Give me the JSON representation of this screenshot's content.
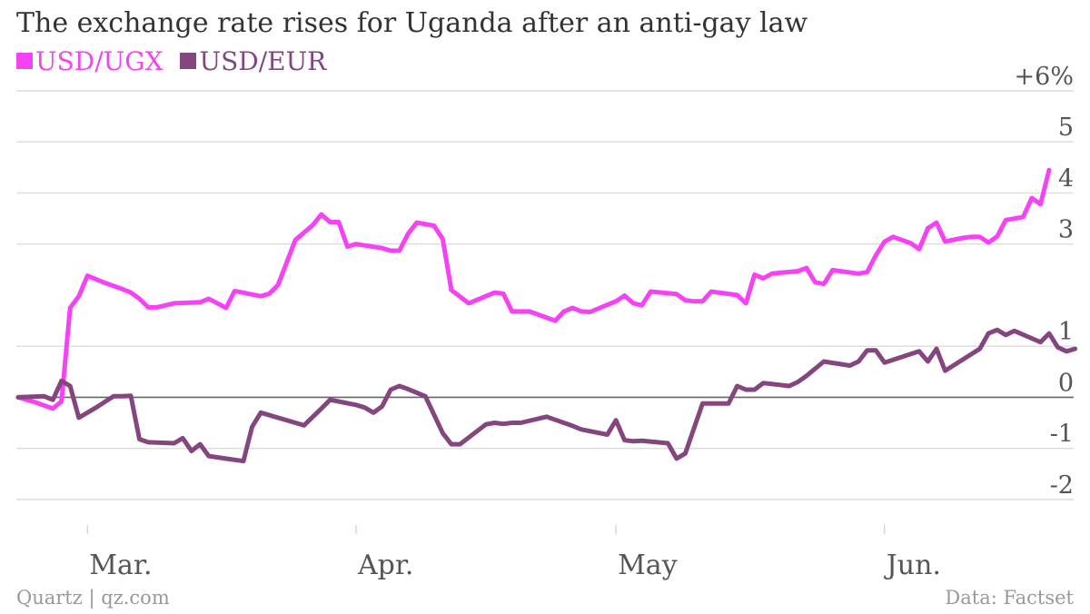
{
  "title": "The exchange rate rises for Uganda after an anti-gay law",
  "footer": {
    "source_left": "Quartz | qz.com",
    "source_right": "Data: Factset"
  },
  "colors": {
    "USD/UGX": "#f442f4",
    "USD/EUR": "#84467e",
    "grid": "#dddddd",
    "zero_line": "#666666"
  },
  "chart_data": {
    "type": "line",
    "title": "The exchange rate rises for Uganda after an anti-gay law",
    "xlabel": "",
    "ylabel": "",
    "ylim": [
      -2.5,
      6
    ],
    "grid": true,
    "legend_placement": "top-left",
    "y_ticks": [
      {
        "value": 6,
        "label": "+6%"
      },
      {
        "value": 5,
        "label": "5"
      },
      {
        "value": 4,
        "label": "4"
      },
      {
        "value": 3,
        "label": "3"
      },
      {
        "value": 1,
        "label": "1"
      },
      {
        "value": 0,
        "label": "0"
      },
      {
        "value": -1,
        "label": "-1"
      },
      {
        "value": -2,
        "label": "-2"
      }
    ],
    "x_ticks": [
      {
        "date": "2014-03-01",
        "label": "Mar."
      },
      {
        "date": "2014-04-01",
        "label": "Apr."
      },
      {
        "date": "2014-05-01",
        "label": "May"
      },
      {
        "date": "2014-06-01",
        "label": "Jun."
      }
    ],
    "x_range": [
      "2014-02-21",
      "2014-06-20"
    ],
    "series": [
      {
        "name": "USD/UGX",
        "points": [
          [
            "2014-02-21",
            0.0
          ],
          [
            "2014-02-23",
            -0.1
          ],
          [
            "2014-02-25",
            -0.22
          ],
          [
            "2014-02-26",
            -0.08
          ],
          [
            "2014-02-27",
            1.75
          ],
          [
            "2014-02-28",
            1.98
          ],
          [
            "2014-03-01",
            2.38
          ],
          [
            "2014-03-03",
            2.24
          ],
          [
            "2014-03-05",
            2.12
          ],
          [
            "2014-03-06",
            2.05
          ],
          [
            "2014-03-07",
            1.93
          ],
          [
            "2014-03-08",
            1.76
          ],
          [
            "2014-03-09",
            1.76
          ],
          [
            "2014-03-11",
            1.84
          ],
          [
            "2014-03-14",
            1.86
          ],
          [
            "2014-03-15",
            1.93
          ],
          [
            "2014-03-17",
            1.75
          ],
          [
            "2014-03-18",
            2.08
          ],
          [
            "2014-03-21",
            1.98
          ],
          [
            "2014-03-22",
            2.03
          ],
          [
            "2014-03-23",
            2.2
          ],
          [
            "2014-03-25",
            3.08
          ],
          [
            "2014-03-27",
            3.37
          ],
          [
            "2014-03-28",
            3.58
          ],
          [
            "2014-03-29",
            3.43
          ],
          [
            "2014-03-30",
            3.43
          ],
          [
            "2014-03-31",
            2.95
          ],
          [
            "2014-04-01",
            3.0
          ],
          [
            "2014-04-04",
            2.92
          ],
          [
            "2014-04-05",
            2.87
          ],
          [
            "2014-04-06",
            2.87
          ],
          [
            "2014-04-07",
            3.2
          ],
          [
            "2014-04-08",
            3.42
          ],
          [
            "2014-04-10",
            3.36
          ],
          [
            "2014-04-11",
            3.1
          ],
          [
            "2014-04-12",
            2.1
          ],
          [
            "2014-04-14",
            1.84
          ],
          [
            "2014-04-17",
            2.05
          ],
          [
            "2014-04-18",
            2.03
          ],
          [
            "2014-04-19",
            1.68
          ],
          [
            "2014-04-21",
            1.68
          ],
          [
            "2014-04-24",
            1.5
          ],
          [
            "2014-04-25",
            1.68
          ],
          [
            "2014-04-26",
            1.75
          ],
          [
            "2014-04-27",
            1.68
          ],
          [
            "2014-04-28",
            1.67
          ],
          [
            "2014-05-01",
            1.88
          ],
          [
            "2014-05-02",
            1.99
          ],
          [
            "2014-05-03",
            1.84
          ],
          [
            "2014-05-04",
            1.8
          ],
          [
            "2014-05-05",
            2.07
          ],
          [
            "2014-05-08",
            2.02
          ],
          [
            "2014-05-09",
            1.9
          ],
          [
            "2014-05-10",
            1.88
          ],
          [
            "2014-05-11",
            1.88
          ],
          [
            "2014-05-12",
            2.07
          ],
          [
            "2014-05-15",
            2.0
          ],
          [
            "2014-05-16",
            1.84
          ],
          [
            "2014-05-17",
            2.4
          ],
          [
            "2014-05-18",
            2.33
          ],
          [
            "2014-05-19",
            2.42
          ],
          [
            "2014-05-22",
            2.47
          ],
          [
            "2014-05-23",
            2.53
          ],
          [
            "2014-05-24",
            2.25
          ],
          [
            "2014-05-25",
            2.22
          ],
          [
            "2014-05-26",
            2.49
          ],
          [
            "2014-05-29",
            2.42
          ],
          [
            "2014-05-30",
            2.45
          ],
          [
            "2014-05-31",
            2.78
          ],
          [
            "2014-06-01",
            3.05
          ],
          [
            "2014-06-02",
            3.14
          ],
          [
            "2014-06-04",
            3.02
          ],
          [
            "2014-06-05",
            2.9
          ],
          [
            "2014-06-06",
            3.31
          ],
          [
            "2014-06-07",
            3.42
          ],
          [
            "2014-06-08",
            3.05
          ],
          [
            "2014-06-10",
            3.12
          ],
          [
            "2014-06-11",
            3.14
          ],
          [
            "2014-06-12",
            3.14
          ],
          [
            "2014-06-13",
            3.03
          ],
          [
            "2014-06-14",
            3.15
          ],
          [
            "2014-06-15",
            3.47
          ],
          [
            "2014-06-17",
            3.53
          ],
          [
            "2014-06-18",
            3.9
          ],
          [
            "2014-06-19",
            3.78
          ],
          [
            "2014-06-20",
            4.45
          ]
        ]
      },
      {
        "name": "USD/EUR",
        "points": [
          [
            "2014-02-21",
            0.0
          ],
          [
            "2014-02-24",
            0.02
          ],
          [
            "2014-02-25",
            -0.05
          ],
          [
            "2014-02-26",
            0.32
          ],
          [
            "2014-02-27",
            0.22
          ],
          [
            "2014-02-28",
            -0.4
          ],
          [
            "2014-03-02",
            -0.2
          ],
          [
            "2014-03-04",
            0.02
          ],
          [
            "2014-03-05",
            0.02
          ],
          [
            "2014-03-06",
            0.03
          ],
          [
            "2014-03-07",
            -0.82
          ],
          [
            "2014-03-08",
            -0.88
          ],
          [
            "2014-03-11",
            -0.9
          ],
          [
            "2014-03-12",
            -0.8
          ],
          [
            "2014-03-13",
            -1.05
          ],
          [
            "2014-03-14",
            -0.92
          ],
          [
            "2014-03-15",
            -1.15
          ],
          [
            "2014-03-19",
            -1.25
          ],
          [
            "2014-03-20",
            -0.58
          ],
          [
            "2014-03-21",
            -0.3
          ],
          [
            "2014-03-25",
            -0.5
          ],
          [
            "2014-03-26",
            -0.55
          ],
          [
            "2014-03-28",
            -0.22
          ],
          [
            "2014-03-29",
            -0.05
          ],
          [
            "2014-04-01",
            -0.15
          ],
          [
            "2014-04-02",
            -0.2
          ],
          [
            "2014-04-03",
            -0.3
          ],
          [
            "2014-04-04",
            -0.18
          ],
          [
            "2014-04-05",
            0.15
          ],
          [
            "2014-04-06",
            0.22
          ],
          [
            "2014-04-07",
            0.16
          ],
          [
            "2014-04-09",
            0.02
          ],
          [
            "2014-04-11",
            -0.7
          ],
          [
            "2014-04-12",
            -0.92
          ],
          [
            "2014-04-13",
            -0.92
          ],
          [
            "2014-04-16",
            -0.53
          ],
          [
            "2014-04-17",
            -0.5
          ],
          [
            "2014-04-18",
            -0.52
          ],
          [
            "2014-04-19",
            -0.5
          ],
          [
            "2014-04-20",
            -0.5
          ],
          [
            "2014-04-23",
            -0.38
          ],
          [
            "2014-04-26",
            -0.56
          ],
          [
            "2014-04-27",
            -0.63
          ],
          [
            "2014-04-30",
            -0.73
          ],
          [
            "2014-05-01",
            -0.45
          ],
          [
            "2014-05-02",
            -0.84
          ],
          [
            "2014-05-03",
            -0.86
          ],
          [
            "2014-05-04",
            -0.85
          ],
          [
            "2014-05-07",
            -0.9
          ],
          [
            "2014-05-08",
            -1.2
          ],
          [
            "2014-05-09",
            -1.1
          ],
          [
            "2014-05-11",
            -0.12
          ],
          [
            "2014-05-14",
            -0.12
          ],
          [
            "2014-05-15",
            0.22
          ],
          [
            "2014-05-16",
            0.15
          ],
          [
            "2014-05-17",
            0.15
          ],
          [
            "2014-05-18",
            0.28
          ],
          [
            "2014-05-21",
            0.22
          ],
          [
            "2014-05-22",
            0.3
          ],
          [
            "2014-05-23",
            0.42
          ],
          [
            "2014-05-25",
            0.7
          ],
          [
            "2014-05-28",
            0.62
          ],
          [
            "2014-05-29",
            0.7
          ],
          [
            "2014-05-30",
            0.92
          ],
          [
            "2014-05-31",
            0.92
          ],
          [
            "2014-06-01",
            0.68
          ],
          [
            "2014-06-05",
            0.9
          ],
          [
            "2014-06-06",
            0.7
          ],
          [
            "2014-06-07",
            0.95
          ],
          [
            "2014-06-08",
            0.52
          ],
          [
            "2014-06-12",
            0.95
          ],
          [
            "2014-06-13",
            1.25
          ],
          [
            "2014-06-14",
            1.32
          ],
          [
            "2014-06-15",
            1.22
          ],
          [
            "2014-06-16",
            1.3
          ],
          [
            "2014-06-19",
            1.08
          ],
          [
            "2014-06-20",
            1.25
          ],
          [
            "2014-06-21",
            0.98
          ],
          [
            "2014-06-22",
            0.9
          ],
          [
            "2014-06-23",
            0.95
          ]
        ]
      }
    ]
  }
}
